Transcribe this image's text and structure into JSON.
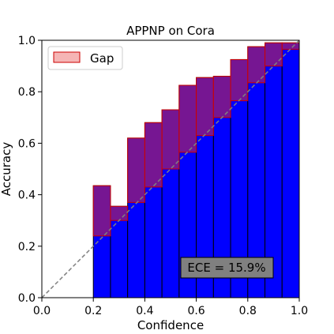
{
  "chart_data": {
    "type": "bar",
    "title": "APPNP on Cora",
    "xlabel": "Confidence",
    "ylabel": "Accuracy",
    "xlim": [
      0.0,
      1.0
    ],
    "ylim": [
      0.0,
      1.0
    ],
    "xticks": [
      "0.0",
      "0.2",
      "0.4",
      "0.6",
      "0.8",
      "1.0"
    ],
    "yticks": [
      "0.0",
      "0.2",
      "0.4",
      "0.6",
      "0.8",
      "1.0"
    ],
    "bin_edges": [
      0.0,
      0.0667,
      0.1333,
      0.2,
      0.2667,
      0.3333,
      0.4,
      0.4667,
      0.5333,
      0.6,
      0.6667,
      0.7333,
      0.8,
      0.8667,
      0.9333,
      1.0
    ],
    "accuracy": [
      0,
      0,
      0,
      0.435,
      0.355,
      0.62,
      0.68,
      0.73,
      0.825,
      0.855,
      0.86,
      0.925,
      0.975,
      0.99,
      0.99
    ],
    "confidence": [
      0,
      0,
      0,
      0.24,
      0.3,
      0.37,
      0.43,
      0.5,
      0.565,
      0.63,
      0.7,
      0.765,
      0.835,
      0.9,
      0.965
    ],
    "legend": {
      "label": "Gap",
      "location": "upper-left"
    },
    "annotation": "ECE = 15.9%",
    "colors": {
      "accuracy_bar": "#0000ff",
      "gap_fill": "#8b1a7f",
      "gap_edge": "#cc0000",
      "diagonal": "#808080",
      "legend_patch": "#f5b5b5",
      "annotation_box": "#808080"
    },
    "grid": false
  }
}
